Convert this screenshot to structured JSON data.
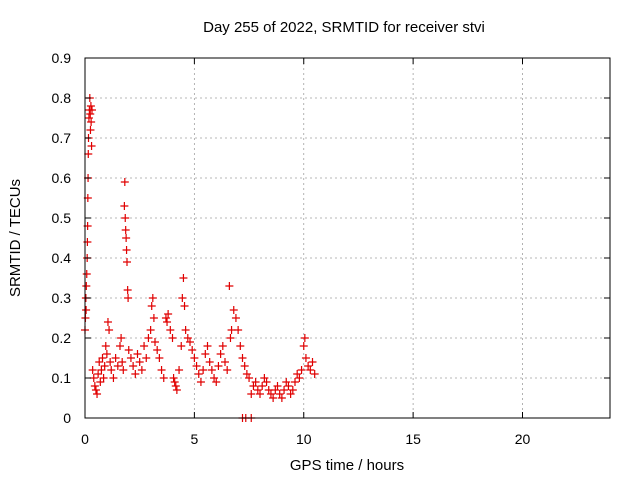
{
  "chart_data": {
    "type": "scatter",
    "title": "Day 255 of 2022, SRMTID for receiver stvi",
    "xlabel": "GPS time / hours",
    "ylabel": "SRMTID / TECUs",
    "xlim": [
      0,
      24
    ],
    "ylim": [
      0,
      0.9
    ],
    "xticks": [
      0,
      5,
      10,
      15,
      20
    ],
    "yticks": [
      0,
      0.1,
      0.2,
      0.3,
      0.4,
      0.5,
      0.6,
      0.7,
      0.8,
      0.9
    ],
    "xtick_labels": [
      "0",
      "5",
      "10",
      "15",
      "20"
    ],
    "ytick_labels": [
      "0",
      "0.1",
      "0.2",
      "0.3",
      "0.4",
      "0.5",
      "0.6",
      "0.7",
      "0.8",
      "0.9"
    ],
    "grid": true,
    "marker": "+",
    "series": [
      {
        "name": "SRMTID",
        "color": "#e00000",
        "points": [
          [
            0.0,
            0.22
          ],
          [
            0.02,
            0.25
          ],
          [
            0.04,
            0.3
          ],
          [
            0.05,
            0.27
          ],
          [
            0.06,
            0.33
          ],
          [
            0.08,
            0.36
          ],
          [
            0.1,
            0.4
          ],
          [
            0.11,
            0.44
          ],
          [
            0.12,
            0.48
          ],
          [
            0.13,
            0.55
          ],
          [
            0.14,
            0.6
          ],
          [
            0.15,
            0.66
          ],
          [
            0.16,
            0.7
          ],
          [
            0.18,
            0.75
          ],
          [
            0.2,
            0.77
          ],
          [
            0.22,
            0.8
          ],
          [
            0.24,
            0.76
          ],
          [
            0.25,
            0.72
          ],
          [
            0.27,
            0.78
          ],
          [
            0.28,
            0.74
          ],
          [
            0.3,
            0.68
          ],
          [
            0.32,
            0.77
          ],
          [
            0.35,
            0.12
          ],
          [
            0.4,
            0.1
          ],
          [
            0.45,
            0.08
          ],
          [
            0.5,
            0.07
          ],
          [
            0.55,
            0.06
          ],
          [
            0.6,
            0.11
          ],
          [
            0.65,
            0.14
          ],
          [
            0.7,
            0.09
          ],
          [
            0.75,
            0.12
          ],
          [
            0.8,
            0.15
          ],
          [
            0.85,
            0.1
          ],
          [
            0.9,
            0.13
          ],
          [
            0.95,
            0.18
          ],
          [
            1.0,
            0.16
          ],
          [
            1.05,
            0.24
          ],
          [
            1.1,
            0.22
          ],
          [
            1.15,
            0.14
          ],
          [
            1.2,
            0.12
          ],
          [
            1.3,
            0.1
          ],
          [
            1.4,
            0.15
          ],
          [
            1.5,
            0.13
          ],
          [
            1.6,
            0.18
          ],
          [
            1.65,
            0.2
          ],
          [
            1.7,
            0.14
          ],
          [
            1.75,
            0.12
          ],
          [
            1.8,
            0.53
          ],
          [
            1.82,
            0.59
          ],
          [
            1.84,
            0.5
          ],
          [
            1.86,
            0.47
          ],
          [
            1.88,
            0.45
          ],
          [
            1.9,
            0.42
          ],
          [
            1.92,
            0.39
          ],
          [
            1.95,
            0.32
          ],
          [
            1.97,
            0.3
          ],
          [
            2.0,
            0.17
          ],
          [
            2.1,
            0.15
          ],
          [
            2.2,
            0.13
          ],
          [
            2.3,
            0.11
          ],
          [
            2.4,
            0.16
          ],
          [
            2.5,
            0.14
          ],
          [
            2.6,
            0.12
          ],
          [
            2.7,
            0.18
          ],
          [
            2.8,
            0.15
          ],
          [
            2.9,
            0.2
          ],
          [
            3.0,
            0.22
          ],
          [
            3.05,
            0.28
          ],
          [
            3.1,
            0.3
          ],
          [
            3.15,
            0.25
          ],
          [
            3.2,
            0.19
          ],
          [
            3.3,
            0.17
          ],
          [
            3.4,
            0.15
          ],
          [
            3.5,
            0.12
          ],
          [
            3.6,
            0.1
          ],
          [
            3.7,
            0.25
          ],
          [
            3.75,
            0.24
          ],
          [
            3.8,
            0.26
          ],
          [
            3.9,
            0.22
          ],
          [
            4.0,
            0.2
          ],
          [
            4.05,
            0.1
          ],
          [
            4.1,
            0.09
          ],
          [
            4.15,
            0.08
          ],
          [
            4.2,
            0.07
          ],
          [
            4.3,
            0.12
          ],
          [
            4.4,
            0.18
          ],
          [
            4.45,
            0.3
          ],
          [
            4.5,
            0.35
          ],
          [
            4.55,
            0.28
          ],
          [
            4.6,
            0.22
          ],
          [
            4.7,
            0.2
          ],
          [
            4.8,
            0.19
          ],
          [
            4.9,
            0.17
          ],
          [
            5.0,
            0.15
          ],
          [
            5.1,
            0.13
          ],
          [
            5.2,
            0.11
          ],
          [
            5.3,
            0.09
          ],
          [
            5.4,
            0.12
          ],
          [
            5.5,
            0.16
          ],
          [
            5.6,
            0.18
          ],
          [
            5.7,
            0.14
          ],
          [
            5.8,
            0.12
          ],
          [
            5.9,
            0.1
          ],
          [
            6.0,
            0.09
          ],
          [
            6.1,
            0.13
          ],
          [
            6.2,
            0.16
          ],
          [
            6.3,
            0.18
          ],
          [
            6.4,
            0.14
          ],
          [
            6.5,
            0.12
          ],
          [
            6.6,
            0.33
          ],
          [
            6.65,
            0.2
          ],
          [
            6.7,
            0.22
          ],
          [
            6.8,
            0.27
          ],
          [
            6.9,
            0.25
          ],
          [
            7.0,
            0.22
          ],
          [
            7.1,
            0.18
          ],
          [
            7.2,
            0.15
          ],
          [
            7.3,
            0.13
          ],
          [
            7.4,
            0.11
          ],
          [
            7.5,
            0.1
          ],
          [
            7.6,
            0.06
          ],
          [
            7.7,
            0.08
          ],
          [
            7.8,
            0.09
          ],
          [
            7.9,
            0.07
          ],
          [
            8.0,
            0.06
          ],
          [
            8.1,
            0.08
          ],
          [
            8.2,
            0.1
          ],
          [
            8.3,
            0.09
          ],
          [
            8.4,
            0.07
          ],
          [
            8.5,
            0.06
          ],
          [
            8.6,
            0.05
          ],
          [
            8.7,
            0.07
          ],
          [
            8.8,
            0.08
          ],
          [
            8.9,
            0.06
          ],
          [
            9.0,
            0.05
          ],
          [
            9.1,
            0.07
          ],
          [
            9.2,
            0.09
          ],
          [
            9.3,
            0.08
          ],
          [
            9.4,
            0.06
          ],
          [
            9.5,
            0.07
          ],
          [
            9.6,
            0.09
          ],
          [
            9.7,
            0.11
          ],
          [
            9.8,
            0.1
          ],
          [
            9.9,
            0.12
          ],
          [
            10.0,
            0.18
          ],
          [
            10.05,
            0.2
          ],
          [
            10.1,
            0.15
          ],
          [
            10.2,
            0.13
          ],
          [
            10.3,
            0.12
          ],
          [
            10.4,
            0.14
          ],
          [
            10.5,
            0.11
          ],
          [
            7.2,
            0.0
          ],
          [
            7.35,
            0.0
          ],
          [
            7.6,
            0.0
          ]
        ]
      }
    ]
  }
}
